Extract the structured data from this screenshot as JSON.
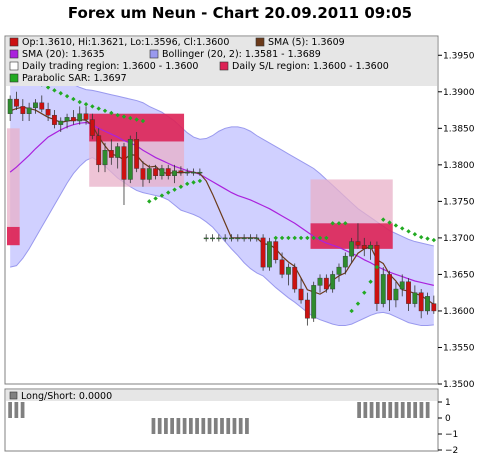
{
  "title": "Forex um Neun - Chart 20.09.2011 09:05",
  "colors": {
    "bull": "#2e8b2e",
    "bear": "#cc1111",
    "sma5": "#6b3a1a",
    "sma20": "#aa22dd",
    "bollinger_fill": "#c8c8ff",
    "bollinger_line": "#9999ee",
    "sar": "#22aa22",
    "sl_region": "#dd2255",
    "trading_region": "#e8b0c8"
  },
  "chart_data": [
    {
      "type": "candlestick",
      "ylim": [
        1.35,
        1.3975
      ],
      "yticks": [
        "1.3500",
        "1.3550",
        "1.3600",
        "1.3650",
        "1.3700",
        "1.3750",
        "1.3800",
        "1.3850",
        "1.3900",
        "1.3950"
      ],
      "legend": [
        {
          "swatch": "#cc1111",
          "text": "Op:1.3610, Hi:1.3621, Lo:1.3596, Cl:1.3600"
        },
        {
          "swatch": "#6b3a1a",
          "text": "SMA (5): 1.3609"
        },
        {
          "swatch": "#aa22dd",
          "text": "SMA (20): 1.3635"
        },
        {
          "swatch": "#9999ee",
          "text": "Bollinger (20, 2): 1.3581 - 1.3689"
        },
        {
          "swatch": "#ffffff",
          "text": "Daily trading region: 1.3600 - 1.3600"
        },
        {
          "swatch": "#dd2255",
          "text": "Daily S/L region: 1.3600 - 1.3600"
        },
        {
          "swatch": "#22aa22",
          "text": "Parabolic SAR: 1.3697"
        }
      ],
      "candles": [
        [
          1.387,
          1.3895,
          1.386,
          1.389
        ],
        [
          1.389,
          1.39,
          1.3875,
          1.388
        ],
        [
          1.388,
          1.389,
          1.386,
          1.387
        ],
        [
          1.387,
          1.3885,
          1.386,
          1.3878
        ],
        [
          1.3878,
          1.389,
          1.387,
          1.3885
        ],
        [
          1.3885,
          1.3895,
          1.3872,
          1.3876
        ],
        [
          1.3876,
          1.3885,
          1.386,
          1.3868
        ],
        [
          1.3868,
          1.3875,
          1.385,
          1.3855
        ],
        [
          1.3855,
          1.3865,
          1.3845,
          1.386
        ],
        [
          1.386,
          1.387,
          1.385,
          1.3865
        ],
        [
          1.3865,
          1.3875,
          1.3855,
          1.386
        ],
        [
          1.386,
          1.388,
          1.3855,
          1.387
        ],
        [
          1.387,
          1.388,
          1.3855,
          1.3862
        ],
        [
          1.3862,
          1.387,
          1.3835,
          1.384
        ],
        [
          1.384,
          1.385,
          1.379,
          1.38
        ],
        [
          1.38,
          1.383,
          1.379,
          1.382
        ],
        [
          1.382,
          1.3835,
          1.38,
          1.381
        ],
        [
          1.381,
          1.383,
          1.3795,
          1.3825
        ],
        [
          1.3825,
          1.383,
          1.3745,
          1.378
        ],
        [
          1.378,
          1.384,
          1.3775,
          1.3835
        ],
        [
          1.3835,
          1.3845,
          1.379,
          1.3795
        ],
        [
          1.3795,
          1.3805,
          1.377,
          1.378
        ],
        [
          1.378,
          1.38,
          1.3775,
          1.3795
        ],
        [
          1.3795,
          1.38,
          1.378,
          1.3785
        ],
        [
          1.3785,
          1.38,
          1.378,
          1.3795
        ],
        [
          1.3795,
          1.38,
          1.378,
          1.3785
        ],
        [
          1.3785,
          1.38,
          1.3775,
          1.3792
        ],
        [
          1.3792,
          1.3798,
          1.3785,
          1.379
        ],
        [
          1.379,
          1.3795,
          1.3785,
          1.379
        ],
        [
          1.379,
          1.3795,
          1.3785,
          1.379
        ],
        [
          1.379,
          1.3795,
          1.3785,
          1.379
        ],
        [
          1.37,
          1.3705,
          1.3695,
          1.37
        ],
        [
          1.37,
          1.3705,
          1.3695,
          1.37
        ],
        [
          1.37,
          1.3705,
          1.3695,
          1.37
        ],
        [
          1.37,
          1.3705,
          1.3695,
          1.37
        ],
        [
          1.37,
          1.3705,
          1.3695,
          1.37
        ],
        [
          1.37,
          1.3705,
          1.3695,
          1.37
        ],
        [
          1.37,
          1.3705,
          1.3695,
          1.37
        ],
        [
          1.37,
          1.3705,
          1.3695,
          1.37
        ],
        [
          1.37,
          1.3705,
          1.3695,
          1.37
        ],
        [
          1.37,
          1.3705,
          1.3655,
          1.366
        ],
        [
          1.366,
          1.37,
          1.3655,
          1.3695
        ],
        [
          1.3695,
          1.37,
          1.3665,
          1.367
        ],
        [
          1.367,
          1.368,
          1.3645,
          1.365
        ],
        [
          1.365,
          1.3665,
          1.3635,
          1.366
        ],
        [
          1.366,
          1.3665,
          1.3625,
          1.363
        ],
        [
          1.363,
          1.3645,
          1.361,
          1.3615
        ],
        [
          1.3615,
          1.3625,
          1.358,
          1.359
        ],
        [
          1.359,
          1.364,
          1.3585,
          1.3635
        ],
        [
          1.3635,
          1.365,
          1.3625,
          1.3645
        ],
        [
          1.3645,
          1.365,
          1.3625,
          1.363
        ],
        [
          1.363,
          1.3655,
          1.3625,
          1.365
        ],
        [
          1.365,
          1.3665,
          1.364,
          1.366
        ],
        [
          1.366,
          1.368,
          1.365,
          1.3675
        ],
        [
          1.3675,
          1.37,
          1.3665,
          1.3695
        ],
        [
          1.3695,
          1.372,
          1.3685,
          1.369
        ],
        [
          1.369,
          1.37,
          1.3675,
          1.3685
        ],
        [
          1.3685,
          1.3695,
          1.367,
          1.369
        ],
        [
          1.369,
          1.3695,
          1.36,
          1.361
        ],
        [
          1.361,
          1.366,
          1.3605,
          1.365
        ],
        [
          1.365,
          1.3655,
          1.36,
          1.3615
        ],
        [
          1.3615,
          1.364,
          1.3605,
          1.363
        ],
        [
          1.363,
          1.365,
          1.362,
          1.364
        ],
        [
          1.364,
          1.3645,
          1.36,
          1.361
        ],
        [
          1.361,
          1.3635,
          1.3605,
          1.3625
        ],
        [
          1.3625,
          1.363,
          1.359,
          1.36
        ],
        [
          1.36,
          1.3625,
          1.3595,
          1.362
        ],
        [
          1.361,
          1.3621,
          1.3596,
          1.36
        ]
      ],
      "sma5": [
        1.3874,
        1.3877,
        1.3879,
        1.3877,
        1.3875,
        1.387,
        1.3865,
        1.3862,
        1.3858,
        1.386,
        1.3861,
        1.3862,
        1.3861,
        1.3854,
        1.3838,
        1.3826,
        1.3815,
        1.3812,
        1.3807,
        1.3814,
        1.3813,
        1.3803,
        1.3797,
        1.3798,
        1.379,
        1.3788,
        1.379,
        1.3789,
        1.379,
        1.379,
        1.3788,
        1.3778,
        1.376,
        1.374,
        1.372,
        1.37,
        1.37,
        1.37,
        1.37,
        1.37,
        1.3692,
        1.3691,
        1.3685,
        1.3675,
        1.3667,
        1.3661,
        1.3645,
        1.3629,
        1.3626,
        1.3623,
        1.3628,
        1.3642,
        1.3648,
        1.3652,
        1.3666,
        1.3679,
        1.3685,
        1.3688,
        1.367,
        1.3665,
        1.365,
        1.3641,
        1.3629,
        1.3627,
        1.3624,
        1.3621,
        1.3615,
        1.3609
      ],
      "sma20": [
        1.379,
        1.3797,
        1.3805,
        1.3813,
        1.3822,
        1.383,
        1.3838,
        1.3843,
        1.3848,
        1.3852,
        1.3855,
        1.3857,
        1.3858,
        1.3855,
        1.385,
        1.3846,
        1.3842,
        1.3838,
        1.3833,
        1.383,
        1.3826,
        1.382,
        1.3815,
        1.381,
        1.3806,
        1.3802,
        1.3798,
        1.3795,
        1.3792,
        1.379,
        1.3787,
        1.3782,
        1.3777,
        1.3772,
        1.3767,
        1.3762,
        1.3758,
        1.3755,
        1.3752,
        1.3748,
        1.3744,
        1.374,
        1.3735,
        1.373,
        1.3725,
        1.372,
        1.3714,
        1.3708,
        1.3702,
        1.3697,
        1.3693,
        1.369,
        1.3687,
        1.3683,
        1.3679,
        1.3675,
        1.367,
        1.3666,
        1.3661,
        1.3657,
        1.3653,
        1.365,
        1.3647,
        1.3644,
        1.3641,
        1.3639,
        1.3637,
        1.3635
      ],
      "bollinger_upper": [
        1.392,
        1.3922,
        1.3924,
        1.3925,
        1.3925,
        1.3924,
        1.3922,
        1.392,
        1.3917,
        1.3914,
        1.391,
        1.3906,
        1.3903,
        1.3902,
        1.39,
        1.3898,
        1.3896,
        1.3894,
        1.3892,
        1.389,
        1.3888,
        1.3885,
        1.388,
        1.3876,
        1.3872,
        1.3866,
        1.386,
        1.3852,
        1.3844,
        1.3838,
        1.3835,
        1.3836,
        1.384,
        1.3846,
        1.385,
        1.3852,
        1.3852,
        1.385,
        1.3846,
        1.384,
        1.3835,
        1.383,
        1.3825,
        1.382,
        1.3815,
        1.381,
        1.3805,
        1.38,
        1.3795,
        1.3788,
        1.378,
        1.3772,
        1.3764,
        1.3756,
        1.3748,
        1.374,
        1.3734,
        1.3728,
        1.3722,
        1.3716,
        1.371,
        1.3706,
        1.3702,
        1.3698,
        1.3695,
        1.3693,
        1.3691,
        1.3689
      ],
      "bollinger_lower": [
        1.366,
        1.3662,
        1.3672,
        1.3685,
        1.37,
        1.3715,
        1.373,
        1.3745,
        1.376,
        1.3775,
        1.3788,
        1.3798,
        1.3806,
        1.381,
        1.3805,
        1.3798,
        1.379,
        1.3782,
        1.3776,
        1.377,
        1.3765,
        1.3762,
        1.376,
        1.3758,
        1.3756,
        1.3752,
        1.3745,
        1.3738,
        1.3735,
        1.3732,
        1.3728,
        1.3722,
        1.3715,
        1.3705,
        1.3695,
        1.3685,
        1.3676,
        1.3666,
        1.3658,
        1.3652,
        1.3648,
        1.364,
        1.3632,
        1.3625,
        1.3618,
        1.3612,
        1.3605,
        1.3598,
        1.3592,
        1.3588,
        1.3585,
        1.3582,
        1.358,
        1.358,
        1.3582,
        1.3586,
        1.359,
        1.3594,
        1.3597,
        1.3598,
        1.3596,
        1.3592,
        1.3588,
        1.3584,
        1.3582,
        1.358,
        1.358,
        1.3581
      ],
      "sar": [
        1.393,
        1.3926,
        1.3922,
        1.3918,
        1.3914,
        1.391,
        1.3906,
        1.3902,
        1.3898,
        1.3894,
        1.389,
        1.3886,
        1.3883,
        1.388,
        1.3877,
        1.3874,
        1.3871,
        1.3868,
        1.3866,
        1.3864,
        1.3862,
        1.386,
        1.375,
        1.3754,
        1.3758,
        1.3762,
        1.3766,
        1.377,
        1.3774,
        1.3776,
        1.3778,
        null,
        null,
        null,
        null,
        null,
        null,
        null,
        null,
        null,
        null,
        null,
        1.37,
        1.37,
        1.37,
        1.37,
        1.37,
        1.37,
        1.37,
        1.37,
        1.37,
        1.372,
        1.372,
        1.372,
        1.36,
        1.361,
        1.3625,
        1.364,
        1.366,
        1.3725,
        1.3721,
        1.3717,
        1.3713,
        1.3709,
        1.3705,
        1.3701,
        1.3699,
        1.3697
      ],
      "sl_regions": [
        {
          "from": 0,
          "to": 1,
          "low": 1.369,
          "high": 1.3715
        },
        {
          "from": 13,
          "to": 27,
          "low": 1.3832,
          "high": 1.387
        },
        {
          "from": 48,
          "to": 60,
          "low": 1.3685,
          "high": 1.372
        }
      ],
      "trading_regions": [
        {
          "from": 0,
          "to": 1,
          "low": 1.369,
          "high": 1.385
        },
        {
          "from": 13,
          "to": 27,
          "low": 1.377,
          "high": 1.3832
        },
        {
          "from": 48,
          "to": 60,
          "low": 1.372,
          "high": 1.378
        }
      ]
    },
    {
      "type": "bar",
      "legend": [
        {
          "swatch": "#808080",
          "text": "Long/Short: 0.0000"
        }
      ],
      "ylim": [
        -2,
        1
      ],
      "yticks": [
        "1",
        "0",
        "−1",
        "−2"
      ],
      "values": [
        1,
        1,
        1,
        0,
        0,
        0,
        0,
        0,
        0,
        0,
        0,
        0,
        0,
        0,
        0,
        0,
        0,
        0,
        0,
        0,
        0,
        0,
        0,
        -1,
        -1,
        -1,
        -1,
        -1,
        -1,
        -1,
        -1,
        -1,
        -1,
        -1,
        -1,
        -1,
        -1,
        -1,
        -1,
        0,
        0,
        0,
        0,
        0,
        0,
        0,
        0,
        0,
        0,
        0,
        0,
        0,
        0,
        0,
        0,
        0,
        1,
        1,
        1,
        1,
        1,
        1,
        1,
        1,
        1,
        1,
        1,
        1,
        0
      ]
    }
  ]
}
